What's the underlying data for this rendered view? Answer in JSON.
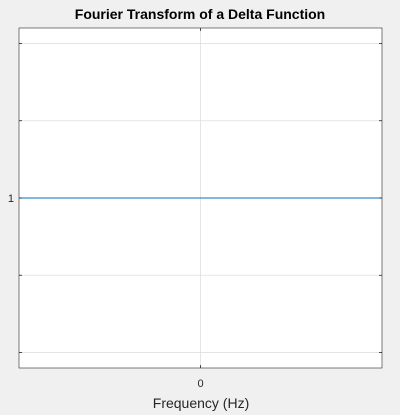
{
  "chart_data": {
    "type": "line",
    "title": "Fourier Transform of a Delta Function",
    "xlabel": "Frequency (Hz)",
    "ylabel": "",
    "x_ticks": [
      {
        "value": 0,
        "label": "0"
      }
    ],
    "y_ticks": [
      {
        "value": 0.9,
        "label": ""
      },
      {
        "value": 0.95,
        "label": ""
      },
      {
        "value": 1.0,
        "label": "1"
      },
      {
        "value": 1.05,
        "label": ""
      },
      {
        "value": 1.1,
        "label": ""
      }
    ],
    "xlim": [
      -1,
      1
    ],
    "ylim": [
      0.89,
      1.11
    ],
    "grid": true,
    "series": [
      {
        "x": [
          -1,
          1
        ],
        "y": [
          1,
          1
        ],
        "color": "#0072bd"
      }
    ]
  }
}
